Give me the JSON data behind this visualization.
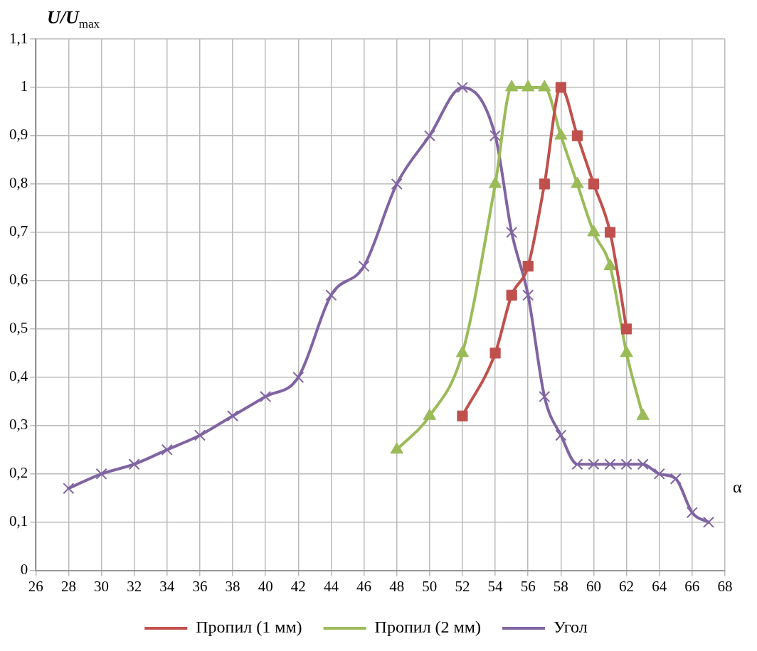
{
  "chart_data": {
    "type": "line",
    "xlabel": "α",
    "ylabel": "U/U$_{max}$",
    "xlim": [
      26,
      68
    ],
    "xticks": [
      26,
      28,
      30,
      32,
      34,
      36,
      38,
      40,
      42,
      44,
      46,
      48,
      50,
      52,
      54,
      56,
      58,
      60,
      62,
      64,
      66,
      68
    ],
    "ylim": [
      0,
      1.1
    ],
    "yticks": [
      0,
      {
        "value": 0.1,
        "label": "0,1"
      },
      {
        "value": 0.2,
        "label": "0,2"
      },
      {
        "value": 0.3,
        "label": "0,3"
      },
      {
        "value": 0.4,
        "label": "0,4"
      },
      {
        "value": 0.5,
        "label": "0,5"
      },
      {
        "value": 0.6,
        "label": "0,6"
      },
      {
        "value": 0.7,
        "label": "0,7"
      },
      {
        "value": 0.8,
        "label": "0,8"
      },
      {
        "value": 0.9,
        "label": "0,9"
      },
      1,
      {
        "value": 1.1,
        "label": "1,1"
      }
    ],
    "grid": true,
    "legend": "bottom",
    "series": [
      {
        "name": "Пропил (1 мм)",
        "color": "#c0504d",
        "marker": "square",
        "x": [
          52,
          54,
          55,
          56,
          57,
          58,
          59,
          60,
          61,
          62
        ],
        "values": [
          0.32,
          0.45,
          0.57,
          0.63,
          0.8,
          1.0,
          0.9,
          0.8,
          0.7,
          0.5
        ]
      },
      {
        "name": "Пропил (2 мм)",
        "color": "#9bbb59",
        "marker": "triangle",
        "x": [
          48,
          50,
          52,
          54,
          55,
          56,
          57,
          58,
          59,
          60,
          61,
          62,
          63
        ],
        "values": [
          0.25,
          0.32,
          0.45,
          0.8,
          1.0,
          1.0,
          1.0,
          0.9,
          0.8,
          0.7,
          0.63,
          0.45,
          0.32
        ]
      },
      {
        "name": "Угол",
        "color": "#8064a2",
        "marker": "cross",
        "x": [
          28,
          30,
          32,
          34,
          36,
          38,
          40,
          42,
          44,
          46,
          48,
          50,
          52,
          54,
          55,
          56,
          57,
          58,
          59,
          60,
          61,
          62,
          63,
          64,
          65,
          66,
          67
        ],
        "values": [
          0.17,
          0.2,
          0.22,
          0.25,
          0.28,
          0.32,
          0.36,
          0.4,
          0.57,
          0.63,
          0.8,
          0.9,
          1.0,
          0.9,
          0.7,
          0.57,
          0.36,
          0.28,
          0.22,
          0.22,
          0.22,
          0.22,
          0.22,
          0.2,
          0.19,
          0.12,
          0.1
        ]
      }
    ]
  }
}
